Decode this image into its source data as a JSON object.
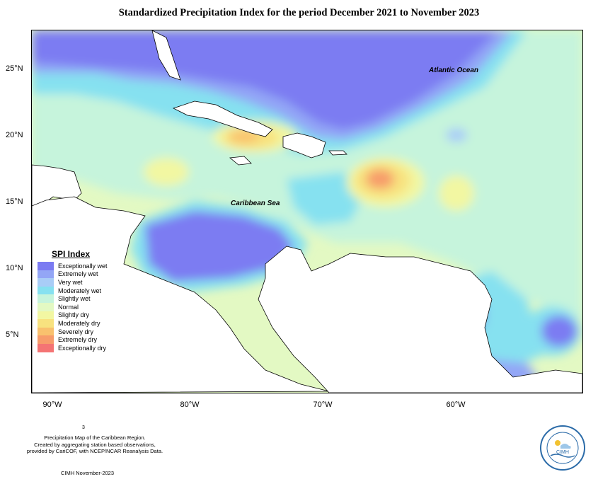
{
  "title": "Standardized Precipitation Index for the period December 2021 to November 2023",
  "map": {
    "lat_labels": [
      "25°N",
      "20°N",
      "15°N",
      "10°N",
      "5°N"
    ],
    "lon_labels": [
      "90°W",
      "80°W",
      "70°W",
      "60°W"
    ],
    "ocean_labels": {
      "atlantic": "Atlantic Ocean",
      "caribbean": "Caribbean Sea"
    }
  },
  "legend": {
    "title": "SPI Index",
    "items": [
      {
        "label": "Exceptionally wet",
        "color": "#7b7bf2"
      },
      {
        "label": "Extremely wet",
        "color": "#93a6f6"
      },
      {
        "label": "Very wet",
        "color": "#a9cdf7"
      },
      {
        "label": "Moderately wet",
        "color": "#86e1f0"
      },
      {
        "label": "Slightly wet",
        "color": "#c6f4dc"
      },
      {
        "label": "Normal",
        "color": "#e3f9c3"
      },
      {
        "label": "Slightly dry",
        "color": "#f2f7a2"
      },
      {
        "label": "Moderately dry",
        "color": "#f8e27f"
      },
      {
        "label": "Severely dry",
        "color": "#f9c16e"
      },
      {
        "label": "Extremely dry",
        "color": "#f79c6b"
      },
      {
        "label": "Exceptionally dry",
        "color": "#f47474"
      }
    ]
  },
  "footnote": {
    "superscript": "3",
    "lines": [
      "Precipitation Map of the Caribbean Region.",
      "Created by aggregating station based observations,",
      "provided by CariCOF, with NCEP/NCAR Reanalysis Data."
    ],
    "date": "CIMH November-2023"
  },
  "logo": {
    "text": "CIMH"
  }
}
